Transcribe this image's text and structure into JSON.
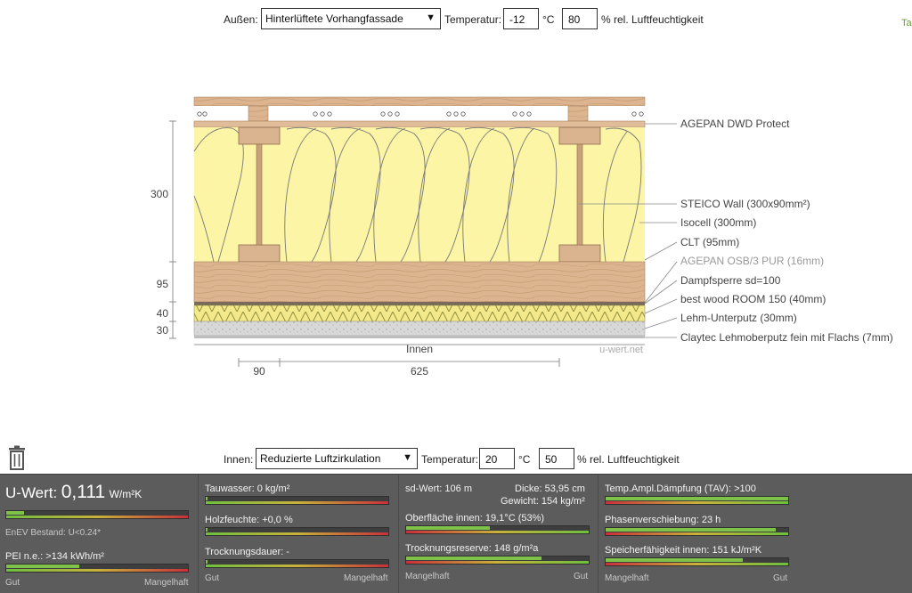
{
  "outside": {
    "label": "Außen:",
    "select_value": "Hinterlüftete Vorhangfassade",
    "temp_label": "Temperatur:",
    "temp_value": "-12",
    "temp_unit": "°C",
    "humidity_value": "80",
    "humidity_label": "% rel. Luftfeuchtigkeit"
  },
  "inside": {
    "label": "Innen:",
    "select_value": "Reduzierte Luftzirkulation",
    "temp_label": "Temperatur:",
    "temp_value": "20",
    "temp_unit": "°C",
    "humidity_value": "50",
    "humidity_label": "% rel. Luftfeuchtigkeit"
  },
  "top_right_tag": "Ta",
  "diagram": {
    "layers": [
      "AGEPAN DWD Protect",
      "STEICO  Wall (300x90mm²)",
      "Isocell (300mm)",
      "CLT (95mm)",
      "AGEPAN OSB/3 PUR (16mm)",
      "Dampfsperre sd=100",
      "best wood ROOM 150 (40mm)",
      "Lehm-Unterputz (30mm)",
      "Claytec Lehmoberputz fein mit Flachs (7mm)"
    ],
    "thickness_labels": [
      "300",
      "95",
      "40",
      "30"
    ],
    "width_labels": [
      "90",
      "625"
    ],
    "inner_side_label": "Innen",
    "watermark": "u-wert.net"
  },
  "results": {
    "u_value": {
      "label": "U-Wert:",
      "value": "0,111",
      "unit": "W/m²K",
      "fill": 0.1
    },
    "enev": "EnEV Bestand: U<0.24*",
    "pei": {
      "label": "PEI n.e.: >134 kWh/m²",
      "fill": 0.4
    },
    "scale_good": "Gut",
    "scale_bad": "Mangelhaft",
    "tauwasser": {
      "label": "Tauwasser: 0 kg/m²",
      "fill": 0.01
    },
    "holzfeuchte": {
      "label": "Holzfeuchte: +0,0 %",
      "fill": 0.01
    },
    "trocknungsdauer": {
      "label": "Trocknungsdauer: -",
      "fill": 0.01
    },
    "sd_wert": "sd-Wert: 106 m",
    "dicke": "Dicke: 53,95 cm",
    "gewicht": "Gewicht: 154 kg/m²",
    "oberflaeche": {
      "label": "Oberfläche innen: 19,1°C (53%)",
      "fill": 0.46
    },
    "trocknungsreserve": {
      "label": "Trocknungsreserve: 148 g/m²a",
      "fill": 0.74
    },
    "tav": {
      "label": "Temp.Ampl.Dämpfung (TAV): >100",
      "fill": 1.0
    },
    "phasen": {
      "label": "Phasenverschiebung: 23 h",
      "fill": 0.93
    },
    "speicher": {
      "label": "Speicherfähigkeit innen: 151 kJ/m²K",
      "fill": 0.75
    }
  },
  "colors": {
    "insulation": "#fcf5a6",
    "wood": "#d9b48f",
    "panel_bg": "#5c5c5c",
    "bar_fill": "#7fc24a"
  }
}
